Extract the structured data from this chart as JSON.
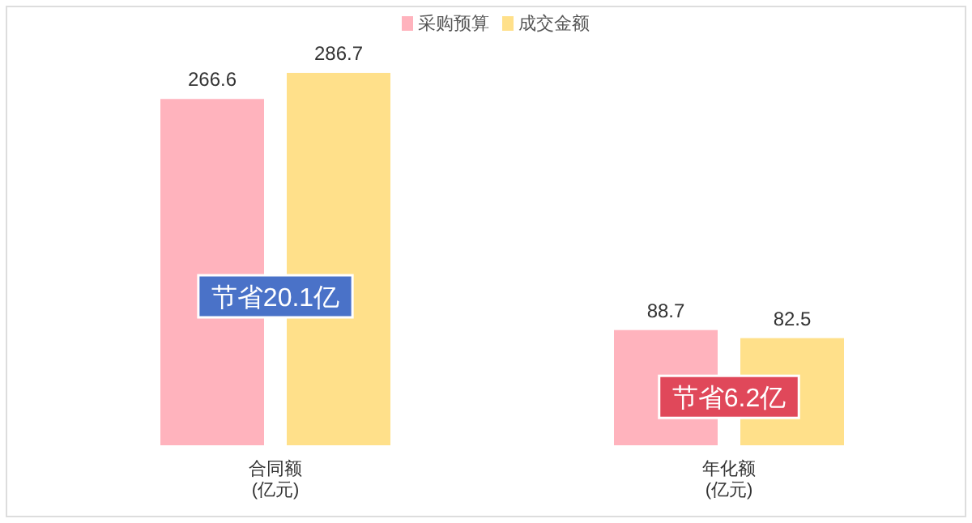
{
  "chart_data": {
    "type": "bar",
    "categories": [
      "合同额\n(亿元)",
      "年化额\n(亿元)"
    ],
    "series": [
      {
        "name": "采购预算",
        "color": "#ffb3bd",
        "values": [
          266.6,
          88.7
        ],
        "value_labels": [
          "266.6",
          "88.7"
        ]
      },
      {
        "name": "成交金额",
        "color": "#ffe08a",
        "values": [
          286.7,
          82.5
        ],
        "value_labels": [
          "286.7",
          "82.5"
        ]
      }
    ],
    "legend": "top",
    "annotations": [
      "节省20.1亿",
      "节省6.2亿"
    ]
  }
}
